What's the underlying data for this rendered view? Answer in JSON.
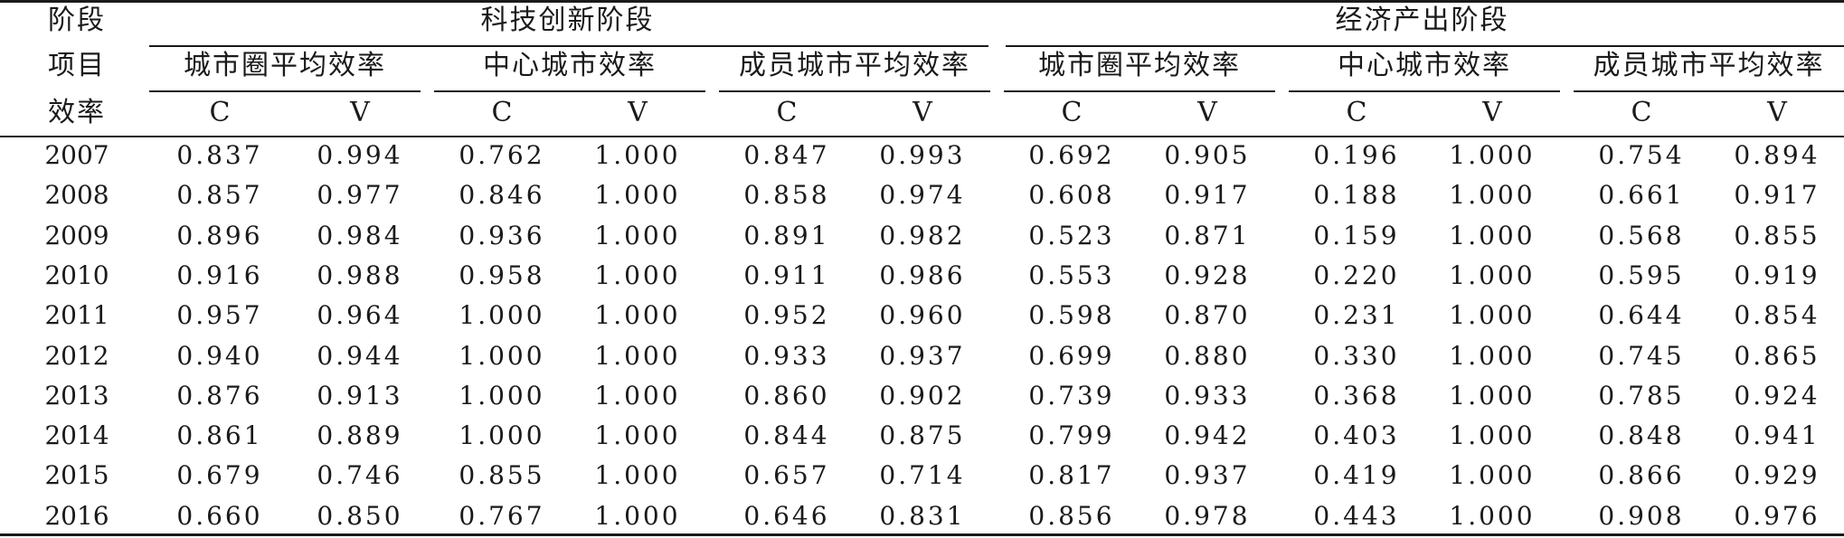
{
  "header": {
    "row_labels": [
      "阶段",
      "项目",
      "效率"
    ],
    "groups": [
      "科技创新阶段",
      "经济产出阶段"
    ],
    "subgroups": [
      "城市圈平均效率",
      "中心城市效率",
      "成员城市平均效率",
      "城市圈平均效率",
      "中心城市效率",
      "成员城市平均效率"
    ],
    "cv_labels": [
      "C",
      "V",
      "C",
      "V",
      "C",
      "V",
      "C",
      "V",
      "C",
      "V",
      "C",
      "V"
    ]
  },
  "rows": [
    {
      "year": "2007",
      "values": [
        "0.837",
        "0.994",
        "0.762",
        "1.000",
        "0.847",
        "0.993",
        "0.692",
        "0.905",
        "0.196",
        "1.000",
        "0.754",
        "0.894"
      ]
    },
    {
      "year": "2008",
      "values": [
        "0.857",
        "0.977",
        "0.846",
        "1.000",
        "0.858",
        "0.974",
        "0.608",
        "0.917",
        "0.188",
        "1.000",
        "0.661",
        "0.917"
      ]
    },
    {
      "year": "2009",
      "values": [
        "0.896",
        "0.984",
        "0.936",
        "1.000",
        "0.891",
        "0.982",
        "0.523",
        "0.871",
        "0.159",
        "1.000",
        "0.568",
        "0.855"
      ]
    },
    {
      "year": "2010",
      "values": [
        "0.916",
        "0.988",
        "0.958",
        "1.000",
        "0.911",
        "0.986",
        "0.553",
        "0.928",
        "0.220",
        "1.000",
        "0.595",
        "0.919"
      ]
    },
    {
      "year": "2011",
      "values": [
        "0.957",
        "0.964",
        "1.000",
        "1.000",
        "0.952",
        "0.960",
        "0.598",
        "0.870",
        "0.231",
        "1.000",
        "0.644",
        "0.854"
      ]
    },
    {
      "year": "2012",
      "values": [
        "0.940",
        "0.944",
        "1.000",
        "1.000",
        "0.933",
        "0.937",
        "0.699",
        "0.880",
        "0.330",
        "1.000",
        "0.745",
        "0.865"
      ]
    },
    {
      "year": "2013",
      "values": [
        "0.876",
        "0.913",
        "1.000",
        "1.000",
        "0.860",
        "0.902",
        "0.739",
        "0.933",
        "0.368",
        "1.000",
        "0.785",
        "0.924"
      ]
    },
    {
      "year": "2014",
      "values": [
        "0.861",
        "0.889",
        "1.000",
        "1.000",
        "0.844",
        "0.875",
        "0.799",
        "0.942",
        "0.403",
        "1.000",
        "0.848",
        "0.941"
      ]
    },
    {
      "year": "2015",
      "values": [
        "0.679",
        "0.746",
        "0.855",
        "1.000",
        "0.657",
        "0.714",
        "0.817",
        "0.937",
        "0.419",
        "1.000",
        "0.866",
        "0.929"
      ]
    },
    {
      "year": "2016",
      "values": [
        "0.660",
        "0.850",
        "0.767",
        "1.000",
        "0.646",
        "0.831",
        "0.856",
        "0.978",
        "0.443",
        "1.000",
        "0.908",
        "0.976"
      ]
    }
  ]
}
